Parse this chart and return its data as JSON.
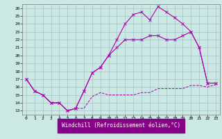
{
  "xlabel": "Windchill (Refroidissement éolien,°C)",
  "bg_color": "#cce8e4",
  "grid_color": "#99bbbb",
  "line_color": "#aa00aa",
  "ylim_min": 12.5,
  "ylim_max": 26.5,
  "xlim_min": -0.5,
  "xlim_max": 23.5,
  "yticks": [
    13,
    14,
    15,
    16,
    17,
    18,
    19,
    20,
    21,
    22,
    23,
    24,
    25,
    26
  ],
  "xticks": [
    0,
    1,
    2,
    3,
    4,
    5,
    6,
    7,
    8,
    9,
    10,
    11,
    12,
    13,
    14,
    15,
    16,
    17,
    18,
    19,
    20,
    21,
    22,
    23
  ],
  "line_flat_x": [
    0,
    1,
    2,
    3,
    4,
    5,
    6,
    7,
    8,
    9,
    10,
    11,
    12,
    13,
    14,
    15,
    16,
    17,
    18,
    19,
    20,
    21,
    22,
    23
  ],
  "line_flat_y": [
    17,
    15.5,
    15,
    14,
    14,
    13,
    13.3,
    13.3,
    14.8,
    15.3,
    15,
    15,
    15,
    15,
    15.3,
    15.3,
    15.8,
    15.8,
    15.8,
    15.8,
    16.2,
    16.2,
    16,
    16.3
  ],
  "line_top_x": [
    0,
    1,
    2,
    3,
    4,
    5,
    6,
    7,
    8,
    9,
    10,
    11,
    12,
    13,
    14,
    15,
    16,
    17,
    18,
    19,
    20,
    21,
    22,
    23
  ],
  "line_top_y": [
    17,
    15.5,
    15,
    14,
    14,
    13,
    13.3,
    15.5,
    17.8,
    18.5,
    20,
    22,
    24,
    25.2,
    25.5,
    24.5,
    26.2,
    25.5,
    24.8,
    24,
    23,
    21,
    16.5,
    16.5
  ],
  "line_mid_x": [
    0,
    1,
    2,
    3,
    4,
    5,
    6,
    7,
    8,
    9,
    10,
    11,
    12,
    13,
    14,
    15,
    16,
    17,
    18,
    19,
    20,
    21,
    22,
    23
  ],
  "line_mid_y": [
    17,
    15.5,
    15,
    14,
    14,
    13,
    13.3,
    15.5,
    17.8,
    18.5,
    20,
    21,
    22,
    22,
    22,
    22.5,
    22.5,
    22,
    22,
    22.5,
    23,
    21,
    16.5,
    16.5
  ],
  "xlabel_bg": "#880088",
  "xlabel_fg": "#ffffff",
  "tick_fontsize": 4.5,
  "xlabel_fontsize": 5.5
}
